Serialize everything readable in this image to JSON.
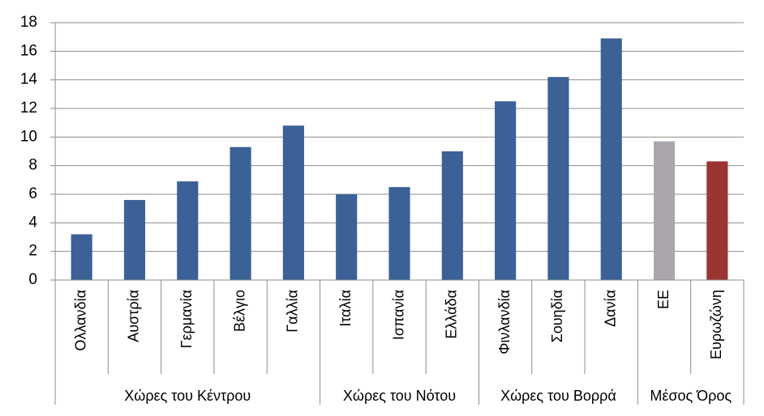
{
  "chart_data": {
    "type": "bar",
    "ylim": [
      0,
      18
    ],
    "yticks": [
      0,
      2,
      4,
      6,
      8,
      10,
      12,
      14,
      16,
      18
    ],
    "grid": true,
    "groups": [
      {
        "name": "Χώρες του Κέντρου",
        "categories": [
          "Ολλανδία",
          "Αυστρία",
          "Γερμανία",
          "Βέλγιο",
          "Γαλλία"
        ],
        "values": [
          3.2,
          5.6,
          6.9,
          9.3,
          10.8
        ],
        "colors": [
          "#3b6196",
          "#3b6196",
          "#3b6196",
          "#3b6196",
          "#3b6196"
        ]
      },
      {
        "name": "Χώρες του Νότου",
        "categories": [
          "Ιταλία",
          "Ισπανία",
          "Ελλάδα"
        ],
        "values": [
          6.0,
          6.5,
          9.0
        ],
        "colors": [
          "#3b6196",
          "#3b6196",
          "#3b6196"
        ]
      },
      {
        "name": "Χώρες του Βορρά",
        "categories": [
          "Φινλανδία",
          "Σουηδία",
          "Δανία"
        ],
        "values": [
          12.5,
          14.2,
          16.9
        ],
        "colors": [
          "#3b6196",
          "#3b6196",
          "#3b6196"
        ]
      },
      {
        "name": "Μέσος Όρος",
        "categories": [
          "ΕΕ",
          "Ευρωζώνη"
        ],
        "values": [
          9.7,
          8.3
        ],
        "colors": [
          "#aba6ae",
          "#9c3434"
        ]
      }
    ]
  }
}
